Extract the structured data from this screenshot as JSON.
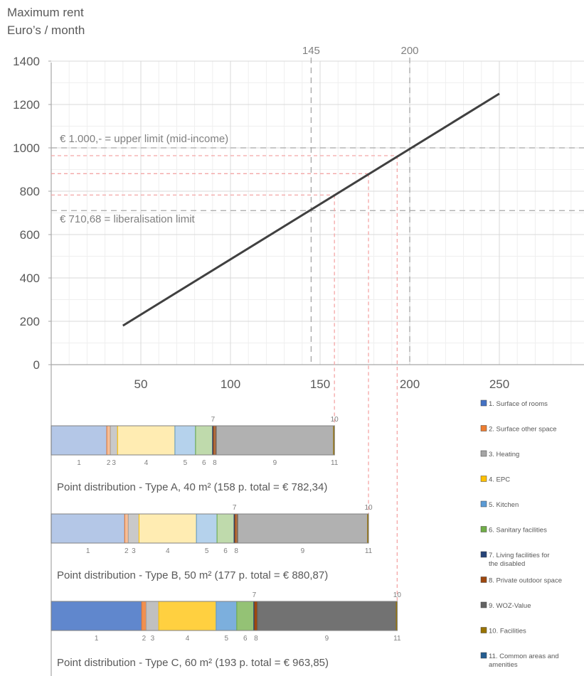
{
  "y_title_line1": "Maximum rent",
  "y_title_line2": "Euro’s / month",
  "colors": {
    "line": "#404040",
    "grid_major": "#d9d9d9",
    "grid_minor": "#efefef",
    "ref_dash": "#a6a6a6",
    "red_dash": "#f4a6a6",
    "axis": "#a6a6a6"
  },
  "chart_data": [
    {
      "type": "line",
      "title": "",
      "xlabel": "",
      "ylabel": "Maximum rent Euro’s / month",
      "xlim": [
        0,
        300
      ],
      "ylim": [
        0,
        1400
      ],
      "x_ticks": [
        50,
        100,
        150,
        200,
        250
      ],
      "y_ticks": [
        0,
        200,
        400,
        600,
        800,
        1000,
        1200,
        1400
      ],
      "grid": true,
      "series": [
        {
          "x": [
            40,
            250
          ],
          "y": [
            180,
            1250
          ]
        }
      ],
      "vertical_markers": [
        {
          "x": 145,
          "label": "145"
        },
        {
          "x": 200,
          "label": "200"
        }
      ],
      "horizontal_markers": [
        {
          "y": 1000,
          "label": "€ 1.000,- =  upper limit (mid-income)"
        },
        {
          "y": 710.68,
          "label": "€ 710,68 =  liberalisation limit"
        }
      ],
      "red_guides": [
        {
          "points": 158,
          "rent": 782.34
        },
        {
          "points": 177,
          "rent": 880.87
        },
        {
          "points": 193,
          "rent": 963.85
        }
      ]
    },
    {
      "type": "bar",
      "orientation": "horizontal-stacked",
      "bars": [
        {
          "caption": "Point distribution - Type A, 40 m² (158 p. total = € 782,34)",
          "total": 158,
          "segments": [
            31,
            2,
            4,
            32,
            11.5,
            9.5,
            0.5,
            1.5,
            65.5,
            0.5,
            0
          ]
        },
        {
          "caption": "Point distribution - Type B, 50 m² (177 p. total = € 880,87)",
          "total": 177,
          "segments": [
            41,
            2,
            6,
            32,
            11.5,
            9.5,
            0.5,
            1.5,
            72.5,
            0.5,
            0
          ]
        },
        {
          "caption": "Point distribution - Type C, 60 m² (193 p. total = € 963,85)",
          "total": 193,
          "segments": [
            50.5,
            2.5,
            7,
            32,
            11.5,
            9.5,
            0.5,
            1.5,
            77.5,
            0.5,
            0
          ]
        }
      ],
      "segment_labels": [
        "1",
        "2",
        "3",
        "4",
        "5",
        "6",
        "7",
        "8",
        "9",
        "10",
        "11"
      ],
      "legend_position": "right",
      "legend": [
        {
          "label": "1. Surface of rooms",
          "color": "#4472c4"
        },
        {
          "label": "2. Surface other space",
          "color": "#ed7d31"
        },
        {
          "label": "3. Heating",
          "color": "#a5a5a5"
        },
        {
          "label": "4. EPC",
          "color": "#ffc000"
        },
        {
          "label": "5. Kitchen",
          "color": "#5b9bd5"
        },
        {
          "label": "6. Sanitary facilities",
          "color": "#70ad47"
        },
        {
          "label": "7. Living facilities for the disabled",
          "color": "#264478"
        },
        {
          "label": "8. Private outdoor space",
          "color": "#9e480e"
        },
        {
          "label": "9. WOZ-Value",
          "color": "#636363"
        },
        {
          "label": "10. Facilities",
          "color": "#997300"
        },
        {
          "label": "11. Common areas and amenities",
          "color": "#255e91"
        }
      ]
    }
  ]
}
